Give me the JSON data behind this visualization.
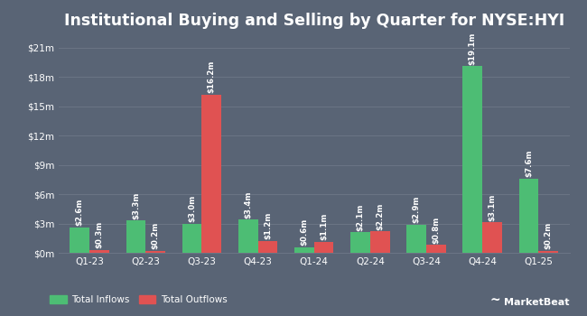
{
  "title": "Institutional Buying and Selling by Quarter for NYSE:HYI",
  "quarters": [
    "Q1-23",
    "Q2-23",
    "Q3-23",
    "Q4-23",
    "Q1-24",
    "Q2-24",
    "Q3-24",
    "Q4-24",
    "Q1-25"
  ],
  "inflows": [
    2.6,
    3.3,
    3.0,
    3.4,
    0.6,
    2.1,
    2.9,
    19.1,
    7.6
  ],
  "outflows": [
    0.3,
    0.2,
    16.2,
    1.2,
    1.1,
    2.2,
    0.8,
    3.1,
    0.2
  ],
  "inflow_labels": [
    "$2.6m",
    "$3.3m",
    "$3.0m",
    "$3.4m",
    "$0.6m",
    "$2.1m",
    "$2.9m",
    "$19.1m",
    "$7.6m"
  ],
  "outflow_labels": [
    "$0.3m",
    "$0.2m",
    "$16.2m",
    "$1.2m",
    "$1.1m",
    "$2.2m",
    "$0.8m",
    "$3.1m",
    "$0.2m"
  ],
  "inflow_color": "#4dbd74",
  "outflow_color": "#e05252",
  "bg_color": "#596475",
  "plot_bg_color": "#596475",
  "text_color": "#ffffff",
  "grid_color": "#6b7585",
  "ylim": [
    0,
    22
  ],
  "yticks": [
    0,
    3,
    6,
    9,
    12,
    15,
    18,
    21
  ],
  "ytick_labels": [
    "$0m",
    "$3m",
    "$6m",
    "$9m",
    "$12m",
    "$15m",
    "$18m",
    "$21m"
  ],
  "bar_width": 0.35,
  "legend_inflow": "Total Inflows",
  "legend_outflow": "Total Outflows",
  "title_fontsize": 12.5,
  "label_fontsize": 6.2,
  "tick_fontsize": 7.5,
  "legend_fontsize": 7.5
}
